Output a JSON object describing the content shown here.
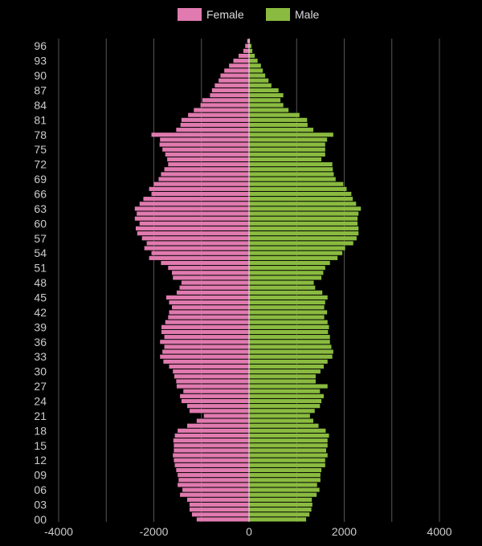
{
  "chart_data": {
    "type": "bar",
    "orientation": "horizontal",
    "chart_style": "population-pyramid",
    "xlim": [
      -4000,
      4000
    ],
    "x_ticks": [
      -4000,
      -2000,
      0,
      2000,
      4000
    ],
    "x_tick_labels": [
      "-4000",
      "-2000",
      "0",
      "2000",
      "4000"
    ],
    "y_tick_labels": [
      "00",
      "03",
      "06",
      "09",
      "12",
      "15",
      "18",
      "21",
      "24",
      "27",
      "30",
      "33",
      "36",
      "39",
      "42",
      "45",
      "48",
      "51",
      "54",
      "57",
      "60",
      "63",
      "66",
      "69",
      "72",
      "75",
      "78",
      "81",
      "84",
      "87",
      "90",
      "93",
      "96"
    ],
    "grid": true,
    "legend_position": "top-center",
    "categories": [
      0,
      1,
      2,
      3,
      4,
      5,
      6,
      7,
      8,
      9,
      10,
      11,
      12,
      13,
      14,
      15,
      16,
      17,
      18,
      19,
      20,
      21,
      22,
      23,
      24,
      25,
      26,
      27,
      28,
      29,
      30,
      31,
      32,
      33,
      34,
      35,
      36,
      37,
      38,
      39,
      40,
      41,
      42,
      43,
      44,
      45,
      46,
      47,
      48,
      49,
      50,
      51,
      52,
      53,
      54,
      55,
      56,
      57,
      58,
      59,
      60,
      61,
      62,
      63,
      64,
      65,
      66,
      67,
      68,
      69,
      70,
      71,
      72,
      73,
      74,
      75,
      76,
      77,
      78,
      79,
      80,
      81,
      82,
      83,
      84,
      85,
      86,
      87,
      88,
      89,
      90,
      91,
      92,
      93,
      94,
      95,
      96,
      97
    ],
    "series": [
      {
        "name": "Female",
        "color": "#e07aaf",
        "values": [
          -1100,
          -1200,
          -1250,
          -1250,
          -1300,
          -1450,
          -1400,
          -1500,
          -1480,
          -1500,
          -1530,
          -1560,
          -1580,
          -1600,
          -1580,
          -1580,
          -1590,
          -1560,
          -1500,
          -1300,
          -1100,
          -950,
          -1250,
          -1300,
          -1420,
          -1450,
          -1380,
          -1520,
          -1530,
          -1570,
          -1600,
          -1680,
          -1800,
          -1870,
          -1820,
          -1780,
          -1870,
          -1780,
          -1840,
          -1840,
          -1760,
          -1700,
          -1680,
          -1620,
          -1680,
          -1740,
          -1520,
          -1460,
          -1420,
          -1600,
          -1620,
          -1700,
          -1850,
          -2100,
          -2050,
          -2200,
          -2150,
          -2250,
          -2350,
          -2380,
          -2300,
          -2400,
          -2360,
          -2400,
          -2300,
          -2220,
          -2050,
          -2100,
          -2000,
          -1900,
          -1850,
          -1780,
          -1700,
          -1720,
          -1760,
          -1820,
          -1880,
          -1870,
          -2050,
          -1530,
          -1440,
          -1420,
          -1280,
          -1160,
          -1020,
          -980,
          -820,
          -780,
          -720,
          -640,
          -600,
          -520,
          -420,
          -330,
          -220,
          -120,
          -80,
          -40
        ]
      },
      {
        "name": "Male",
        "color": "#8abb40",
        "values": [
          1200,
          1270,
          1310,
          1330,
          1320,
          1420,
          1480,
          1430,
          1500,
          1500,
          1520,
          1600,
          1600,
          1650,
          1620,
          1650,
          1650,
          1680,
          1610,
          1460,
          1350,
          1280,
          1380,
          1490,
          1520,
          1570,
          1490,
          1650,
          1400,
          1400,
          1500,
          1570,
          1650,
          1750,
          1770,
          1730,
          1700,
          1700,
          1660,
          1680,
          1650,
          1580,
          1640,
          1580,
          1600,
          1650,
          1540,
          1390,
          1360,
          1520,
          1560,
          1600,
          1700,
          1860,
          1960,
          2020,
          2190,
          2260,
          2300,
          2300,
          2280,
          2280,
          2300,
          2350,
          2250,
          2180,
          2150,
          2050,
          1980,
          1820,
          1780,
          1760,
          1750,
          1520,
          1600,
          1600,
          1600,
          1640,
          1770,
          1350,
          1230,
          1220,
          1060,
          830,
          720,
          660,
          720,
          620,
          470,
          410,
          340,
          290,
          250,
          180,
          120,
          70,
          50,
          20
        ]
      }
    ]
  }
}
